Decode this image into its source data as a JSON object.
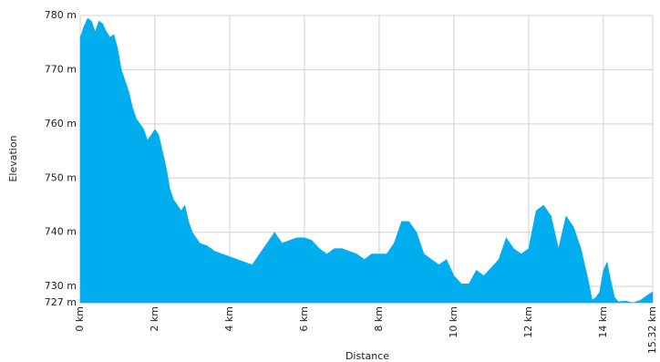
{
  "chart_data": {
    "type": "area",
    "xlabel": "Distance",
    "ylabel": "Elevation",
    "x": [
      0,
      0.1,
      0.2,
      0.3,
      0.4,
      0.5,
      0.6,
      0.7,
      0.8,
      0.9,
      1.0,
      1.1,
      1.2,
      1.3,
      1.4,
      1.5,
      1.6,
      1.7,
      1.8,
      1.9,
      2.0,
      2.1,
      2.2,
      2.3,
      2.4,
      2.5,
      2.6,
      2.7,
      2.8,
      2.9,
      3.0,
      3.1,
      3.2,
      3.4,
      3.6,
      3.8,
      4.0,
      4.2,
      4.4,
      4.6,
      4.8,
      5.0,
      5.2,
      5.4,
      5.6,
      5.8,
      6.0,
      6.2,
      6.4,
      6.6,
      6.8,
      7.0,
      7.2,
      7.4,
      7.6,
      7.8,
      8.0,
      8.2,
      8.4,
      8.6,
      8.8,
      9.0,
      9.2,
      9.4,
      9.6,
      9.8,
      10.0,
      10.2,
      10.4,
      10.6,
      10.8,
      11.0,
      11.2,
      11.4,
      11.6,
      11.8,
      12.0,
      12.2,
      12.4,
      12.6,
      12.8,
      13.0,
      13.2,
      13.4,
      13.6,
      13.7,
      13.8,
      13.9,
      14.0,
      14.1,
      14.2,
      14.3,
      14.4,
      14.6,
      14.8,
      15.0,
      15.2,
      15.32
    ],
    "values": [
      776,
      778,
      779.5,
      779,
      777,
      779,
      778.5,
      777,
      776,
      776.5,
      774,
      770,
      768,
      766,
      763,
      761,
      760,
      759,
      757,
      758,
      759,
      758,
      755,
      752,
      748,
      746,
      745,
      744,
      745,
      742,
      740,
      739,
      738,
      737.5,
      736.5,
      736,
      735.5,
      735,
      734.5,
      734,
      736,
      738,
      740,
      738,
      738.5,
      739,
      739,
      738.5,
      737,
      736,
      737,
      737,
      736.5,
      736,
      735,
      736,
      736,
      736,
      738,
      742,
      742,
      740,
      736,
      735,
      734,
      735,
      732,
      730.5,
      730.5,
      733,
      732,
      733.5,
      735,
      739,
      737,
      736,
      737,
      744,
      745,
      743,
      737,
      743,
      741,
      737,
      731,
      727.5,
      728,
      729,
      733,
      734.5,
      731,
      728,
      727.2,
      727.3,
      727,
      727.5,
      728.5,
      729
    ],
    "color": "#00adef",
    "xlim": [
      0,
      15.32
    ],
    "ylim": [
      727,
      780
    ],
    "xticks": [
      {
        "value": 0,
        "label": "0 km"
      },
      {
        "value": 2,
        "label": "2 km"
      },
      {
        "value": 4,
        "label": "4 km"
      },
      {
        "value": 6,
        "label": "6 km"
      },
      {
        "value": 8,
        "label": "8 km"
      },
      {
        "value": 10,
        "label": "10 km"
      },
      {
        "value": 12,
        "label": "12 km"
      },
      {
        "value": 14,
        "label": "14 km"
      },
      {
        "value": 15.32,
        "label": "15.32 km"
      }
    ],
    "yticks": [
      {
        "value": 727,
        "label": "727 m"
      },
      {
        "value": 730,
        "label": "730 m"
      },
      {
        "value": 740,
        "label": "740 m"
      },
      {
        "value": 750,
        "label": "750 m"
      },
      {
        "value": 760,
        "label": "760 m"
      },
      {
        "value": 770,
        "label": "770 m"
      },
      {
        "value": 780,
        "label": "780 m"
      }
    ],
    "grid": true
  }
}
